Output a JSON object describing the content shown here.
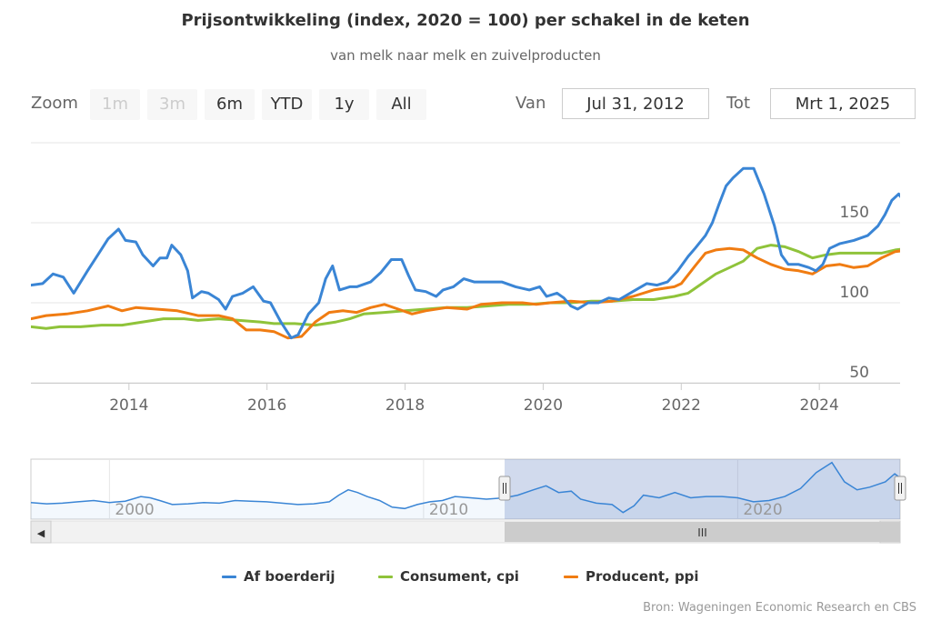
{
  "header": {
    "title": "Prijsontwikkeling (index, 2020 = 100) per schakel in de keten",
    "subtitle": "van melk naar melk en zuivelproducten"
  },
  "range_selector": {
    "zoom_label": "Zoom",
    "buttons": [
      {
        "label": "1m",
        "enabled": false
      },
      {
        "label": "3m",
        "enabled": false
      },
      {
        "label": "6m",
        "enabled": true
      },
      {
        "label": "YTD",
        "enabled": true
      },
      {
        "label": "1y",
        "enabled": true
      },
      {
        "label": "All",
        "enabled": true
      }
    ],
    "from_label": "Van",
    "from_value": "Jul 31, 2012",
    "to_label": "Tot",
    "to_value": "Mrt 1, 2025"
  },
  "navigator": {
    "tick_labels": [
      "2000",
      "2010",
      "2020"
    ],
    "scrollbar_grip": "III",
    "left_arrow": "◀",
    "right_arrow": "▶",
    "handle_grip": "||",
    "selected_range": {
      "from": 2012.58,
      "to": 2025.17
    },
    "full_range": {
      "from": 1997.5,
      "to": 2025.17
    }
  },
  "legend": [
    {
      "name": "Af boerderij",
      "color": "#3a85d5"
    },
    {
      "name": "Consument, cpi",
      "color": "#8fc33a"
    },
    {
      "name": "Producent, ppi",
      "color": "#f07c12"
    }
  ],
  "credits": "Bron: Wageningen Economic Research en CBS",
  "chart_data": {
    "type": "line",
    "title": "Prijsontwikkeling (index, 2020 = 100) per schakel in de keten",
    "subtitle": "van melk naar melk en zuivelproducten",
    "xlabel": "",
    "ylabel": "",
    "xlim": [
      2012.58,
      2025.17
    ],
    "ylim": [
      50,
      200
    ],
    "x_ticks": [
      "2014",
      "2016",
      "2018",
      "2020",
      "2022",
      "2024"
    ],
    "y_ticks": [
      "50",
      "100",
      "150"
    ],
    "grid": true,
    "legend_position": "bottom",
    "series": [
      {
        "name": "Af boerderij",
        "color": "#3a85d5",
        "points": [
          [
            2012.58,
            111
          ],
          [
            2012.75,
            112
          ],
          [
            2012.9,
            118
          ],
          [
            2013.05,
            116
          ],
          [
            2013.2,
            106
          ],
          [
            2013.4,
            120
          ],
          [
            2013.55,
            130
          ],
          [
            2013.7,
            140
          ],
          [
            2013.85,
            146
          ],
          [
            2013.95,
            139
          ],
          [
            2014.1,
            138
          ],
          [
            2014.2,
            130
          ],
          [
            2014.35,
            123
          ],
          [
            2014.45,
            128
          ],
          [
            2014.55,
            128
          ],
          [
            2014.62,
            136
          ],
          [
            2014.75,
            130
          ],
          [
            2014.85,
            120
          ],
          [
            2014.92,
            103
          ],
          [
            2015.05,
            107
          ],
          [
            2015.15,
            106
          ],
          [
            2015.3,
            102
          ],
          [
            2015.4,
            96
          ],
          [
            2015.5,
            104
          ],
          [
            2015.65,
            106
          ],
          [
            2015.8,
            110
          ],
          [
            2015.95,
            101
          ],
          [
            2016.05,
            100
          ],
          [
            2016.2,
            88
          ],
          [
            2016.35,
            78
          ],
          [
            2016.45,
            80
          ],
          [
            2016.6,
            93
          ],
          [
            2016.75,
            100
          ],
          [
            2016.85,
            115
          ],
          [
            2016.95,
            123
          ],
          [
            2017.05,
            108
          ],
          [
            2017.2,
            110
          ],
          [
            2017.3,
            110
          ],
          [
            2017.5,
            113
          ],
          [
            2017.65,
            119
          ],
          [
            2017.8,
            127
          ],
          [
            2017.95,
            127
          ],
          [
            2018.05,
            117
          ],
          [
            2018.15,
            108
          ],
          [
            2018.3,
            107
          ],
          [
            2018.45,
            104
          ],
          [
            2018.55,
            108
          ],
          [
            2018.7,
            110
          ],
          [
            2018.85,
            115
          ],
          [
            2019.0,
            113
          ],
          [
            2019.2,
            113
          ],
          [
            2019.4,
            113
          ],
          [
            2019.6,
            110
          ],
          [
            2019.8,
            108
          ],
          [
            2019.95,
            110
          ],
          [
            2020.05,
            104
          ],
          [
            2020.2,
            106
          ],
          [
            2020.3,
            103
          ],
          [
            2020.4,
            98
          ],
          [
            2020.5,
            96
          ],
          [
            2020.65,
            100
          ],
          [
            2020.8,
            100
          ],
          [
            2020.95,
            103
          ],
          [
            2021.1,
            102
          ],
          [
            2021.3,
            107
          ],
          [
            2021.5,
            112
          ],
          [
            2021.65,
            111
          ],
          [
            2021.8,
            113
          ],
          [
            2021.95,
            120
          ],
          [
            2022.1,
            129
          ],
          [
            2022.2,
            134
          ],
          [
            2022.35,
            142
          ],
          [
            2022.45,
            150
          ],
          [
            2022.55,
            162
          ],
          [
            2022.65,
            173
          ],
          [
            2022.75,
            178
          ],
          [
            2022.9,
            184
          ],
          [
            2023.05,
            184
          ],
          [
            2023.2,
            168
          ],
          [
            2023.35,
            148
          ],
          [
            2023.45,
            130
          ],
          [
            2023.55,
            124
          ],
          [
            2023.7,
            124
          ],
          [
            2023.85,
            122
          ],
          [
            2023.95,
            120
          ],
          [
            2024.05,
            124
          ],
          [
            2024.15,
            134
          ],
          [
            2024.3,
            137
          ],
          [
            2024.5,
            139
          ],
          [
            2024.7,
            142
          ],
          [
            2024.85,
            148
          ],
          [
            2024.95,
            155
          ],
          [
            2025.05,
            164
          ],
          [
            2025.15,
            168
          ],
          [
            2025.25,
            162
          ],
          [
            2025.3,
            160
          ]
        ]
      },
      {
        "name": "Consument, cpi",
        "color": "#8fc33a",
        "points": [
          [
            2012.58,
            85
          ],
          [
            2012.8,
            84
          ],
          [
            2013.0,
            85
          ],
          [
            2013.3,
            85
          ],
          [
            2013.6,
            86
          ],
          [
            2013.9,
            86
          ],
          [
            2014.2,
            88
          ],
          [
            2014.5,
            90
          ],
          [
            2014.8,
            90
          ],
          [
            2015.0,
            89
          ],
          [
            2015.3,
            90
          ],
          [
            2015.6,
            89
          ],
          [
            2015.9,
            88
          ],
          [
            2016.1,
            87
          ],
          [
            2016.4,
            87
          ],
          [
            2016.7,
            86
          ],
          [
            2017.0,
            88
          ],
          [
            2017.2,
            90
          ],
          [
            2017.4,
            93
          ],
          [
            2017.7,
            94
          ],
          [
            2018.0,
            95
          ],
          [
            2018.3,
            96
          ],
          [
            2018.6,
            97
          ],
          [
            2018.9,
            97
          ],
          [
            2019.2,
            98
          ],
          [
            2019.5,
            99
          ],
          [
            2019.8,
            99
          ],
          [
            2020.1,
            100
          ],
          [
            2020.4,
            100
          ],
          [
            2020.7,
            101
          ],
          [
            2021.0,
            101
          ],
          [
            2021.3,
            102
          ],
          [
            2021.6,
            102
          ],
          [
            2021.9,
            104
          ],
          [
            2022.1,
            106
          ],
          [
            2022.3,
            112
          ],
          [
            2022.5,
            118
          ],
          [
            2022.7,
            122
          ],
          [
            2022.9,
            126
          ],
          [
            2023.1,
            134
          ],
          [
            2023.3,
            136
          ],
          [
            2023.5,
            135
          ],
          [
            2023.7,
            132
          ],
          [
            2023.9,
            128
          ],
          [
            2024.1,
            130
          ],
          [
            2024.3,
            131
          ],
          [
            2024.6,
            131
          ],
          [
            2024.9,
            131
          ],
          [
            2025.1,
            133
          ],
          [
            2025.3,
            134
          ]
        ]
      },
      {
        "name": "Producent, ppi",
        "color": "#f07c12",
        "points": [
          [
            2012.58,
            90
          ],
          [
            2012.8,
            92
          ],
          [
            2013.1,
            93
          ],
          [
            2013.4,
            95
          ],
          [
            2013.7,
            98
          ],
          [
            2013.9,
            95
          ],
          [
            2014.1,
            97
          ],
          [
            2014.4,
            96
          ],
          [
            2014.7,
            95
          ],
          [
            2015.0,
            92
          ],
          [
            2015.3,
            92
          ],
          [
            2015.5,
            90
          ],
          [
            2015.7,
            83
          ],
          [
            2015.9,
            83
          ],
          [
            2016.1,
            82
          ],
          [
            2016.3,
            78
          ],
          [
            2016.5,
            79
          ],
          [
            2016.7,
            88
          ],
          [
            2016.9,
            94
          ],
          [
            2017.1,
            95
          ],
          [
            2017.3,
            94
          ],
          [
            2017.5,
            97
          ],
          [
            2017.7,
            99
          ],
          [
            2017.9,
            96
          ],
          [
            2018.1,
            93
          ],
          [
            2018.3,
            95
          ],
          [
            2018.6,
            97
          ],
          [
            2018.9,
            96
          ],
          [
            2019.1,
            99
          ],
          [
            2019.4,
            100
          ],
          [
            2019.7,
            100
          ],
          [
            2019.9,
            99
          ],
          [
            2020.1,
            100
          ],
          [
            2020.4,
            101
          ],
          [
            2020.7,
            100
          ],
          [
            2021.0,
            101
          ],
          [
            2021.3,
            104
          ],
          [
            2021.6,
            108
          ],
          [
            2021.9,
            110
          ],
          [
            2022.0,
            112
          ],
          [
            2022.2,
            123
          ],
          [
            2022.35,
            131
          ],
          [
            2022.5,
            133
          ],
          [
            2022.7,
            134
          ],
          [
            2022.9,
            133
          ],
          [
            2023.1,
            128
          ],
          [
            2023.3,
            124
          ],
          [
            2023.5,
            121
          ],
          [
            2023.7,
            120
          ],
          [
            2023.9,
            118
          ],
          [
            2024.1,
            123
          ],
          [
            2024.3,
            124
          ],
          [
            2024.5,
            122
          ],
          [
            2024.7,
            123
          ],
          [
            2024.9,
            128
          ],
          [
            2025.1,
            132
          ],
          [
            2025.3,
            133
          ]
        ]
      }
    ],
    "navigator_series": {
      "name": "Af boerderij",
      "points": [
        [
          1997.5,
          65
        ],
        [
          1998.0,
          63
        ],
        [
          1998.5,
          64
        ],
        [
          1999.0,
          66
        ],
        [
          1999.5,
          68
        ],
        [
          2000.0,
          65
        ],
        [
          2000.5,
          67
        ],
        [
          2001.0,
          74
        ],
        [
          2001.3,
          72
        ],
        [
          2001.6,
          68
        ],
        [
          2002.0,
          62
        ],
        [
          2002.5,
          63
        ],
        [
          2003.0,
          65
        ],
        [
          2003.5,
          64
        ],
        [
          2004.0,
          68
        ],
        [
          2004.5,
          67
        ],
        [
          2005.0,
          66
        ],
        [
          2005.5,
          64
        ],
        [
          2006.0,
          62
        ],
        [
          2006.5,
          63
        ],
        [
          2007.0,
          66
        ],
        [
          2007.3,
          76
        ],
        [
          2007.6,
          84
        ],
        [
          2007.9,
          80
        ],
        [
          2008.2,
          74
        ],
        [
          2008.6,
          68
        ],
        [
          2009.0,
          58
        ],
        [
          2009.4,
          56
        ],
        [
          2009.8,
          62
        ],
        [
          2010.2,
          66
        ],
        [
          2010.6,
          68
        ],
        [
          2011.0,
          74
        ],
        [
          2011.5,
          72
        ],
        [
          2012.0,
          70
        ],
        [
          2012.58,
          72
        ],
        [
          2013.0,
          76
        ],
        [
          2013.5,
          84
        ],
        [
          2013.9,
          90
        ],
        [
          2014.3,
          80
        ],
        [
          2014.7,
          82
        ],
        [
          2015.0,
          70
        ],
        [
          2015.5,
          64
        ],
        [
          2016.0,
          62
        ],
        [
          2016.35,
          50
        ],
        [
          2016.7,
          60
        ],
        [
          2017.0,
          76
        ],
        [
          2017.5,
          72
        ],
        [
          2018.0,
          80
        ],
        [
          2018.5,
          72
        ],
        [
          2019.0,
          74
        ],
        [
          2019.5,
          74
        ],
        [
          2020.0,
          72
        ],
        [
          2020.5,
          66
        ],
        [
          2021.0,
          68
        ],
        [
          2021.5,
          74
        ],
        [
          2022.0,
          86
        ],
        [
          2022.5,
          110
        ],
        [
          2023.0,
          125
        ],
        [
          2023.4,
          96
        ],
        [
          2023.8,
          84
        ],
        [
          2024.2,
          88
        ],
        [
          2024.7,
          96
        ],
        [
          2025.0,
          108
        ],
        [
          2025.17,
          102
        ]
      ]
    }
  }
}
